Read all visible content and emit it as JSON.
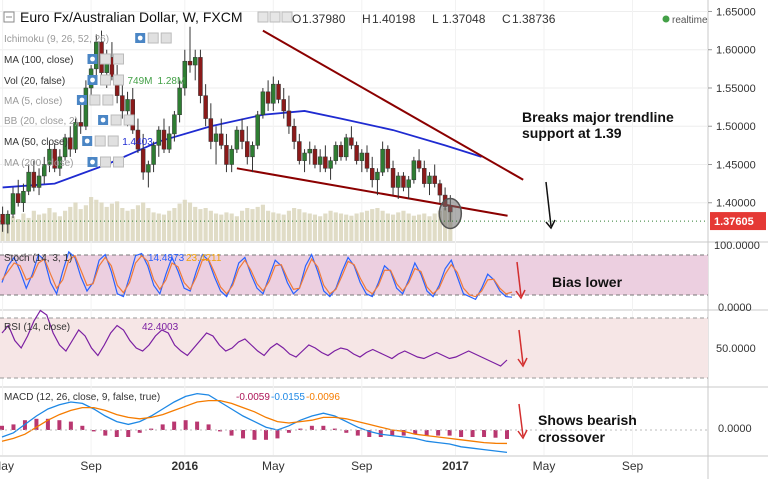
{
  "header": {
    "symbol": "Euro Fx/Australian Dollar, W, FXCM",
    "ohlc": [
      {
        "k": "O",
        "v": "1.37980"
      },
      {
        "k": "H",
        "v": "1.40198"
      },
      {
        "k": "L",
        "v": "1.37048"
      },
      {
        "k": "C",
        "v": "1.38736"
      }
    ],
    "realtime": "realtime"
  },
  "indicators": [
    {
      "label": "Ichimoku (9, 26, 52, 26)"
    },
    {
      "label": "MA (100, close)"
    },
    {
      "label": "Vol (20, false)",
      "values": [
        "749M",
        "1.28M"
      ]
    },
    {
      "label": "MA (5, close)"
    },
    {
      "label": "BB (20, close, 2)"
    },
    {
      "label": "MA (50, close)",
      "values": [
        "1.4403"
      ]
    },
    {
      "label": "MA (200, close)"
    }
  ],
  "annotations": {
    "trendline_note": [
      "Breaks major trendline",
      "support at 1.39"
    ],
    "bias_note": "Bias lower",
    "macd_note": [
      "Shows bearish",
      "crossover"
    ]
  },
  "panes": {
    "stoch": {
      "label": "Stoch (14, 3, 1)",
      "values": [
        "14.4873",
        "23.4211"
      ],
      "ticks": [
        "100.0000",
        "0.0000"
      ],
      "colors": [
        "#2962ff",
        "#f0a30a"
      ]
    },
    "rsi": {
      "label": "RSI (14, close)",
      "values": [
        "42.4003"
      ],
      "ticks": [
        "50.0000"
      ],
      "colors": [
        "#7b1fa2"
      ]
    },
    "macd": {
      "label": "MACD (12, 26, close, 9, false, true)",
      "values": [
        "-0.0059",
        "-0.0155",
        "-0.0096"
      ],
      "ticks": [
        "0.0000"
      ],
      "colors": [
        "#ad1457",
        "#1e88e5",
        "#f57c00"
      ]
    }
  },
  "chart_data": {
    "type": "candlestick",
    "title": "Euro Fx/Australian Dollar, W, FXCM",
    "y_ticks": [
      1.65,
      1.6,
      1.55,
      1.5,
      1.45,
      1.4
    ],
    "y_tick_labels": [
      "1.65000",
      "1.60000",
      "1.55000",
      "1.50000",
      "1.45000",
      "1.40000"
    ],
    "ylim": [
      1.35,
      1.665
    ],
    "last_price": "1.37605",
    "x_tick_labels": [
      "May",
      "Sep",
      "2016",
      "May",
      "Sep",
      "2017",
      "May",
      "Sep"
    ],
    "x_tick_bars": [
      0,
      17,
      35,
      52,
      69,
      87,
      104,
      121
    ],
    "total_bars": 136,
    "candles": [
      [
        1.385,
        1.395,
        1.362,
        1.372
      ],
      [
        1.372,
        1.39,
        1.36,
        1.385
      ],
      [
        1.385,
        1.42,
        1.38,
        1.412
      ],
      [
        1.412,
        1.43,
        1.395,
        1.4
      ],
      [
        1.4,
        1.425,
        1.388,
        1.415
      ],
      [
        1.415,
        1.45,
        1.41,
        1.44
      ],
      [
        1.44,
        1.455,
        1.415,
        1.42
      ],
      [
        1.42,
        1.445,
        1.41,
        1.435
      ],
      [
        1.435,
        1.46,
        1.425,
        1.45
      ],
      [
        1.45,
        1.48,
        1.44,
        1.47
      ],
      [
        1.47,
        1.478,
        1.44,
        1.445
      ],
      [
        1.445,
        1.47,
        1.435,
        1.46
      ],
      [
        1.46,
        1.49,
        1.455,
        1.485
      ],
      [
        1.485,
        1.5,
        1.46,
        1.47
      ],
      [
        1.47,
        1.51,
        1.465,
        1.505
      ],
      [
        1.505,
        1.53,
        1.49,
        1.5
      ],
      [
        1.5,
        1.56,
        1.495,
        1.55
      ],
      [
        1.55,
        1.58,
        1.535,
        1.575
      ],
      [
        1.575,
        1.62,
        1.56,
        1.61
      ],
      [
        1.61,
        1.625,
        1.56,
        1.57
      ],
      [
        1.57,
        1.6,
        1.55,
        1.59
      ],
      [
        1.59,
        1.61,
        1.56,
        1.565
      ],
      [
        1.565,
        1.58,
        1.53,
        1.54
      ],
      [
        1.54,
        1.56,
        1.51,
        1.52
      ],
      [
        1.52,
        1.545,
        1.5,
        1.535
      ],
      [
        1.535,
        1.55,
        1.49,
        1.495
      ],
      [
        1.495,
        1.51,
        1.465,
        1.47
      ],
      [
        1.47,
        1.49,
        1.43,
        1.44
      ],
      [
        1.44,
        1.455,
        1.42,
        1.45
      ],
      [
        1.45,
        1.48,
        1.44,
        1.475
      ],
      [
        1.475,
        1.5,
        1.46,
        1.495
      ],
      [
        1.495,
        1.51,
        1.465,
        1.47
      ],
      [
        1.47,
        1.5,
        1.465,
        1.49
      ],
      [
        1.49,
        1.52,
        1.48,
        1.515
      ],
      [
        1.515,
        1.56,
        1.505,
        1.55
      ],
      [
        1.55,
        1.6,
        1.54,
        1.585
      ],
      [
        1.585,
        1.63,
        1.57,
        1.58
      ],
      [
        1.58,
        1.6,
        1.56,
        1.59
      ],
      [
        1.59,
        1.6,
        1.53,
        1.54
      ],
      [
        1.54,
        1.555,
        1.5,
        1.51
      ],
      [
        1.51,
        1.53,
        1.47,
        1.48
      ],
      [
        1.48,
        1.5,
        1.45,
        1.49
      ],
      [
        1.49,
        1.51,
        1.47,
        1.475
      ],
      [
        1.475,
        1.49,
        1.44,
        1.45
      ],
      [
        1.45,
        1.475,
        1.44,
        1.47
      ],
      [
        1.47,
        1.5,
        1.465,
        1.495
      ],
      [
        1.495,
        1.51,
        1.47,
        1.48
      ],
      [
        1.48,
        1.5,
        1.45,
        1.46
      ],
      [
        1.46,
        1.48,
        1.44,
        1.475
      ],
      [
        1.475,
        1.52,
        1.47,
        1.515
      ],
      [
        1.515,
        1.55,
        1.51,
        1.545
      ],
      [
        1.545,
        1.56,
        1.52,
        1.53
      ],
      [
        1.53,
        1.565,
        1.52,
        1.555
      ],
      [
        1.555,
        1.56,
        1.53,
        1.535
      ],
      [
        1.535,
        1.55,
        1.51,
        1.52
      ],
      [
        1.52,
        1.54,
        1.49,
        1.5
      ],
      [
        1.5,
        1.51,
        1.47,
        1.48
      ],
      [
        1.48,
        1.49,
        1.45,
        1.455
      ],
      [
        1.455,
        1.47,
        1.44,
        1.465
      ],
      [
        1.465,
        1.48,
        1.45,
        1.47
      ],
      [
        1.47,
        1.475,
        1.445,
        1.45
      ],
      [
        1.45,
        1.47,
        1.44,
        1.46
      ],
      [
        1.46,
        1.475,
        1.44,
        1.445
      ],
      [
        1.445,
        1.46,
        1.43,
        1.455
      ],
      [
        1.455,
        1.48,
        1.45,
        1.475
      ],
      [
        1.475,
        1.48,
        1.455,
        1.46
      ],
      [
        1.46,
        1.49,
        1.455,
        1.485
      ],
      [
        1.485,
        1.5,
        1.47,
        1.475
      ],
      [
        1.475,
        1.48,
        1.45,
        1.455
      ],
      [
        1.455,
        1.47,
        1.44,
        1.465
      ],
      [
        1.465,
        1.475,
        1.44,
        1.445
      ],
      [
        1.445,
        1.46,
        1.42,
        1.43
      ],
      [
        1.43,
        1.445,
        1.41,
        1.44
      ],
      [
        1.44,
        1.48,
        1.435,
        1.47
      ],
      [
        1.47,
        1.475,
        1.44,
        1.445
      ],
      [
        1.445,
        1.455,
        1.41,
        1.42
      ],
      [
        1.42,
        1.44,
        1.405,
        1.435
      ],
      [
        1.435,
        1.44,
        1.415,
        1.42
      ],
      [
        1.42,
        1.435,
        1.405,
        1.43
      ],
      [
        1.43,
        1.46,
        1.425,
        1.455
      ],
      [
        1.455,
        1.47,
        1.44,
        1.445
      ],
      [
        1.445,
        1.455,
        1.42,
        1.425
      ],
      [
        1.425,
        1.44,
        1.41,
        1.435
      ],
      [
        1.435,
        1.45,
        1.42,
        1.425
      ],
      [
        1.425,
        1.43,
        1.4,
        1.41
      ],
      [
        1.41,
        1.42,
        1.39,
        1.395
      ],
      [
        1.395,
        1.41,
        1.375,
        1.388
      ]
    ],
    "volume_relative": [
      0.3,
      0.35,
      0.45,
      0.4,
      0.5,
      0.42,
      0.55,
      0.48,
      0.5,
      0.6,
      0.52,
      0.45,
      0.55,
      0.62,
      0.7,
      0.58,
      0.65,
      0.8,
      0.75,
      0.7,
      0.62,
      0.68,
      0.72,
      0.6,
      0.55,
      0.58,
      0.65,
      0.7,
      0.6,
      0.52,
      0.5,
      0.48,
      0.55,
      0.6,
      0.68,
      0.75,
      0.7,
      0.62,
      0.58,
      0.6,
      0.55,
      0.5,
      0.48,
      0.52,
      0.5,
      0.45,
      0.55,
      0.6,
      0.58,
      0.62,
      0.66,
      0.55,
      0.52,
      0.5,
      0.48,
      0.55,
      0.6,
      0.58,
      0.52,
      0.5,
      0.48,
      0.45,
      0.5,
      0.55,
      0.52,
      0.5,
      0.48,
      0.46,
      0.5,
      0.52,
      0.55,
      0.58,
      0.6,
      0.55,
      0.5,
      0.48,
      0.52,
      0.55,
      0.5,
      0.46,
      0.48,
      0.5,
      0.45,
      0.5,
      0.55,
      0.6,
      0.62
    ],
    "ma50": [
      [
        0,
        1.42
      ],
      [
        10,
        1.425
      ],
      [
        20,
        1.45
      ],
      [
        30,
        1.48
      ],
      [
        40,
        1.5
      ],
      [
        50,
        1.515
      ],
      [
        58,
        1.52
      ],
      [
        65,
        1.51
      ],
      [
        75,
        1.495
      ],
      [
        85,
        1.475
      ],
      [
        92,
        1.46
      ]
    ],
    "upper_trendline": [
      [
        50,
        1.625
      ],
      [
        100,
        1.43
      ]
    ],
    "lower_trendline": [
      [
        45,
        1.445
      ],
      [
        97,
        1.383
      ]
    ],
    "stoch": {
      "k": [
        40,
        70,
        85,
        60,
        30,
        55,
        90,
        80,
        40,
        20,
        60,
        95,
        85,
        50,
        25,
        40,
        80,
        90,
        60,
        20,
        15,
        50,
        88,
        92,
        70,
        35,
        20,
        55,
        85,
        60,
        30,
        25,
        60,
        90,
        80,
        50,
        25,
        15,
        40,
        75,
        85,
        55,
        30,
        20,
        50,
        80,
        70,
        40,
        20,
        30,
        70,
        90,
        60,
        25,
        15,
        30,
        60,
        85,
        70,
        40,
        20,
        15,
        40,
        70,
        60,
        30,
        20,
        45,
        75,
        55,
        25,
        15,
        35,
        65,
        80,
        50,
        20,
        15,
        10,
        30,
        55,
        45,
        25,
        15,
        14
      ],
      "d": [
        45,
        60,
        75,
        70,
        45,
        50,
        75,
        82,
        55,
        30,
        45,
        80,
        88,
        62,
        35,
        38,
        70,
        85,
        70,
        35,
        22,
        40,
        75,
        88,
        78,
        45,
        28,
        45,
        75,
        68,
        40,
        28,
        50,
        80,
        82,
        58,
        32,
        20,
        35,
        65,
        80,
        62,
        38,
        25,
        42,
        70,
        72,
        48,
        28,
        30,
        58,
        82,
        68,
        35,
        20,
        28,
        52,
        78,
        72,
        48,
        28,
        20,
        35,
        62,
        62,
        38,
        25,
        40,
        65,
        60,
        32,
        20,
        30,
        55,
        72,
        58,
        30,
        18,
        15,
        25,
        45,
        46,
        30,
        20,
        23
      ]
    },
    "rsi": [
      60,
      65,
      55,
      50,
      58,
      68,
      75,
      72,
      60,
      52,
      48,
      55,
      62,
      58,
      50,
      45,
      52,
      60,
      65,
      62,
      55,
      50,
      48,
      52,
      58,
      62,
      60,
      52,
      48,
      45,
      50,
      55,
      60,
      58,
      52,
      48,
      50,
      54,
      56,
      52,
      48,
      45,
      50,
      53,
      50,
      46,
      44,
      48,
      52,
      50,
      47,
      45,
      48,
      50,
      49,
      46,
      44,
      47,
      49,
      47,
      45,
      43,
      46,
      48,
      46,
      44,
      43,
      45,
      47,
      45,
      43,
      44,
      46,
      48,
      46,
      44,
      42,
      40,
      38,
      42
    ],
    "macd": [
      -0.005,
      -0.002,
      0.004,
      0.01,
      0.015,
      0.018,
      0.02,
      0.019,
      0.015,
      0.01,
      0.006,
      0.004,
      0.006,
      0.01,
      0.015,
      0.02,
      0.024,
      0.026,
      0.025,
      0.02,
      0.015,
      0.01,
      0.006,
      0.002,
      0.0,
      0.003,
      0.007,
      0.01,
      0.012,
      0.01,
      0.006,
      0.002,
      -0.001,
      -0.003,
      -0.004,
      -0.005,
      -0.006,
      -0.008,
      -0.009,
      -0.01,
      -0.012,
      -0.013,
      -0.014,
      -0.015,
      -0.016
    ],
    "macd_signal": [
      -0.008,
      -0.006,
      -0.003,
      0.002,
      0.007,
      0.011,
      0.014,
      0.016,
      0.016,
      0.014,
      0.011,
      0.009,
      0.008,
      0.009,
      0.011,
      0.014,
      0.017,
      0.02,
      0.021,
      0.021,
      0.019,
      0.016,
      0.013,
      0.009,
      0.006,
      0.005,
      0.006,
      0.007,
      0.009,
      0.009,
      0.008,
      0.006,
      0.004,
      0.002,
      0.0,
      -0.001,
      -0.003,
      -0.004,
      -0.005,
      -0.006,
      -0.007,
      -0.008,
      -0.009,
      -0.0095,
      -0.0096
    ]
  }
}
